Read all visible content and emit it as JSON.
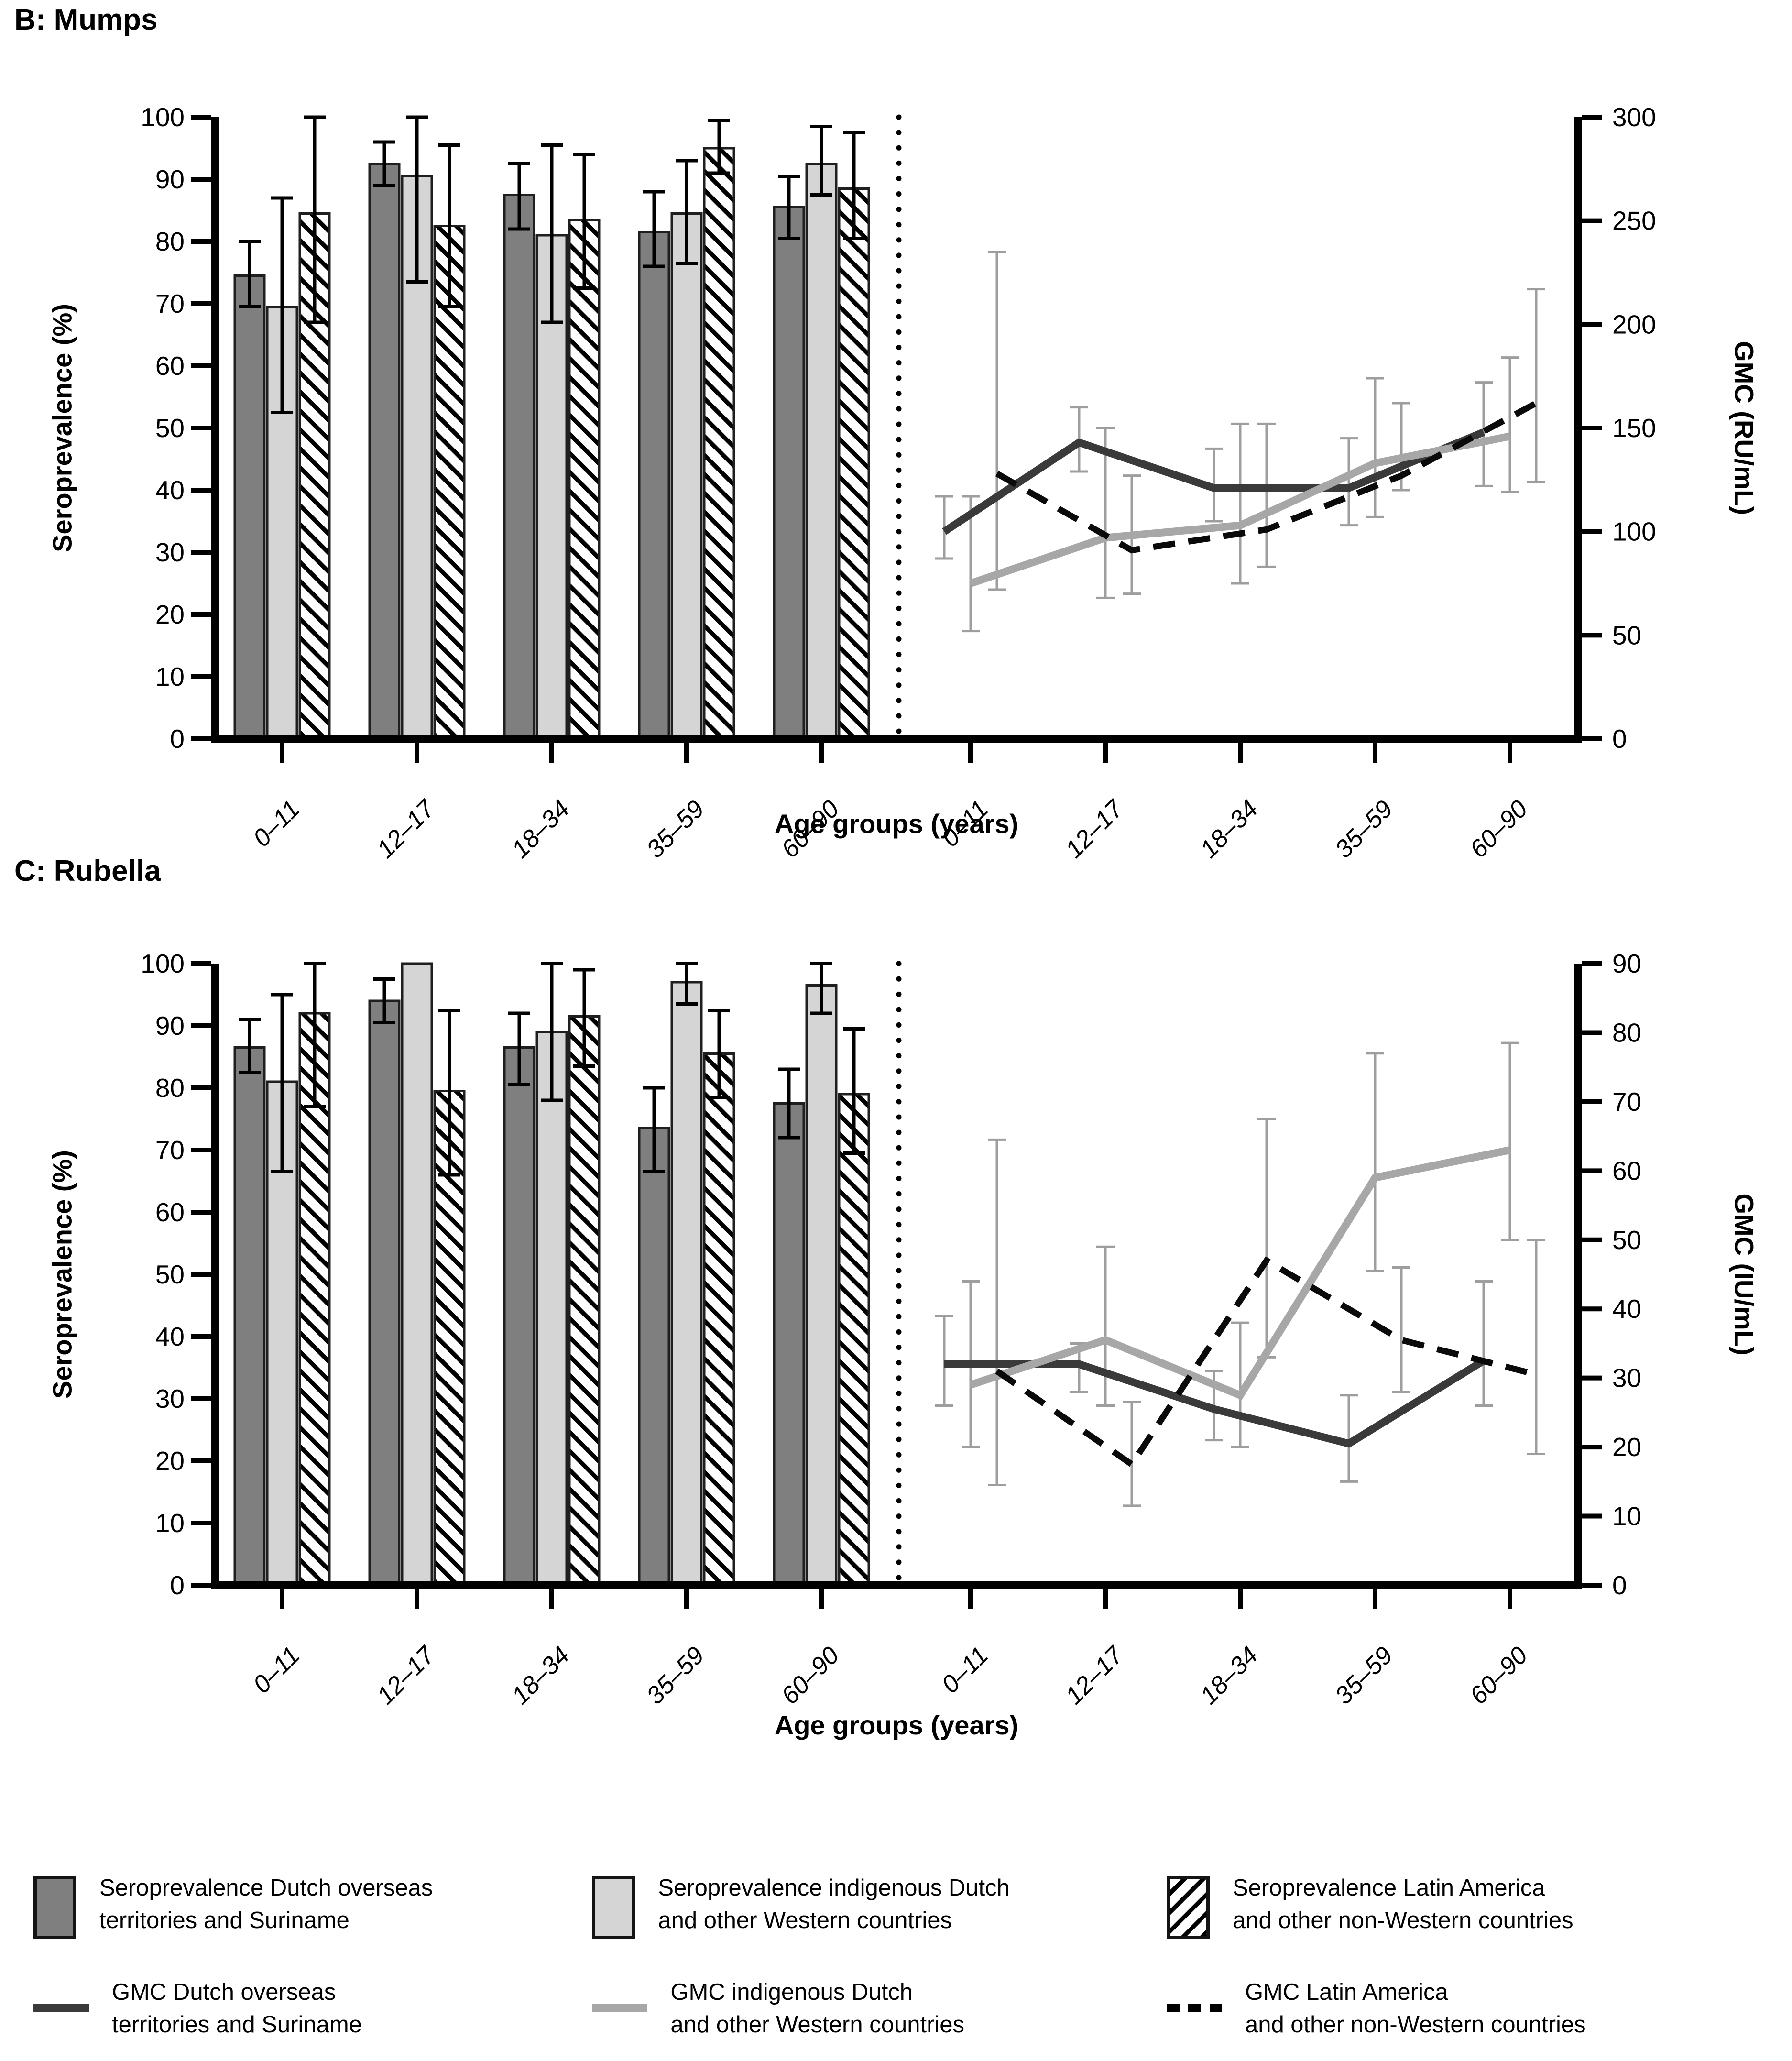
{
  "colors": {
    "bar_dark": "#7f7f7f",
    "bar_light": "#d5d5d5",
    "bar_border": "#1f1f1f",
    "line_dark": "#3a3a3a",
    "line_gray": "#a7a7a7",
    "line_dashed": "#0a0a0a",
    "error_bar_on_bars": "#000000",
    "error_bar_on_lines": "#9e9e9e",
    "axis": "#000000"
  },
  "chart_data": [
    {
      "panel": "B",
      "title": "B: Mumps",
      "type": "bar+line",
      "xlabel": "Age groups (years)",
      "categories": [
        "0–11",
        "12–17",
        "18–34",
        "35–59",
        "60–90"
      ],
      "bar_axis": {
        "label": "Seroprevalence (%)",
        "min": 0,
        "max": 100,
        "step": 10
      },
      "line_axis": {
        "label": "GMC (RU/mL)",
        "min": 0,
        "max": 300,
        "step": 50
      },
      "grid": "off",
      "bar_series": [
        {
          "name": "Seroprevalence Dutch overseas territories and Suriname",
          "style": "dark",
          "values": [
            74.5,
            92.5,
            87.5,
            81.5,
            85.5
          ],
          "ci_low": [
            69.5,
            89,
            82,
            76,
            80.5
          ],
          "ci_high": [
            80,
            96,
            92.5,
            88,
            90.5
          ]
        },
        {
          "name": "Seroprevalence indigenous Dutch and other Western countries",
          "style": "light",
          "values": [
            69.5,
            90.5,
            81,
            84.5,
            92.5
          ],
          "ci_low": [
            52.5,
            73.5,
            67,
            76.5,
            87.5
          ],
          "ci_high": [
            87,
            100,
            95.5,
            93,
            98.5
          ]
        },
        {
          "name": "Seroprevalence Latin America and other non-Western countries",
          "style": "hatched",
          "values": [
            84.5,
            82.5,
            83.5,
            95,
            88.5
          ],
          "ci_low": [
            67,
            69.5,
            72.5,
            91,
            80.5
          ],
          "ci_high": [
            100,
            95.5,
            94,
            99.5,
            97.5
          ]
        }
      ],
      "line_series": [
        {
          "name": "GMC Dutch overseas territories and Suriname",
          "style": "dark-solid",
          "values": [
            100,
            143,
            121,
            121,
            148
          ],
          "ci_low": [
            87,
            129,
            105,
            103,
            122
          ],
          "ci_high": [
            117,
            160,
            140,
            145,
            172
          ]
        },
        {
          "name": "GMC indigenous Dutch and other Western countries",
          "style": "gray-solid",
          "values": [
            75,
            97,
            103,
            133,
            146
          ],
          "ci_low": [
            52,
            68,
            75,
            107,
            119
          ],
          "ci_high": [
            117,
            150,
            152,
            174,
            184
          ]
        },
        {
          "name": "GMC Latin America and other non-Western countries",
          "style": "black-dashed",
          "values": [
            128,
            91,
            101,
            127,
            162
          ],
          "ci_low": [
            72,
            70,
            83,
            120,
            124
          ],
          "ci_high": [
            235,
            127,
            152,
            162,
            217
          ]
        }
      ]
    },
    {
      "panel": "C",
      "title": "C: Rubella",
      "type": "bar+line",
      "xlabel": "Age groups (years)",
      "categories": [
        "0–11",
        "12–17",
        "18–34",
        "35–59",
        "60–90"
      ],
      "bar_axis": {
        "label": "Seroprevalence (%)",
        "min": 0,
        "max": 100,
        "step": 10
      },
      "line_axis": {
        "label": "GMC (IU/mL)",
        "min": 0,
        "max": 90,
        "step": 10
      },
      "grid": "off",
      "bar_series": [
        {
          "name": "Seroprevalence Dutch overseas territories and Suriname",
          "style": "dark",
          "values": [
            86.5,
            94,
            86.5,
            73.5,
            77.5
          ],
          "ci_low": [
            82.5,
            90.5,
            80.5,
            66.5,
            72
          ],
          "ci_high": [
            91,
            97.5,
            92,
            80,
            83
          ]
        },
        {
          "name": "Seroprevalence indigenous Dutch and other Western countries",
          "style": "light",
          "values": [
            81,
            100,
            89,
            97,
            96.5
          ],
          "ci_low": [
            66.5,
            100,
            78,
            93.5,
            92
          ],
          "ci_high": [
            95,
            100,
            100,
            100,
            100
          ]
        },
        {
          "name": "Seroprevalence Latin America and other non-Western countries",
          "style": "hatched",
          "values": [
            92,
            79.5,
            91.5,
            85.5,
            79
          ],
          "ci_low": [
            77,
            66,
            83.5,
            78.5,
            69.5
          ],
          "ci_high": [
            100,
            92.5,
            99,
            92.5,
            89.5
          ]
        }
      ],
      "line_series": [
        {
          "name": "GMC Dutch overseas territories and Suriname",
          "style": "dark-solid",
          "values": [
            32,
            32,
            25.5,
            20.5,
            32.5
          ],
          "ci_low": [
            26,
            28,
            21,
            15,
            26
          ],
          "ci_high": [
            39,
            35,
            31,
            27.5,
            44
          ]
        },
        {
          "name": "GMC indigenous Dutch and other Western countries",
          "style": "gray-solid",
          "values": [
            29,
            35.5,
            27.5,
            59,
            63
          ],
          "ci_low": [
            20,
            26,
            20,
            45.5,
            50
          ],
          "ci_high": [
            44,
            49,
            38,
            77,
            78.5
          ]
        },
        {
          "name": "GMC Latin America and other non-Western countries",
          "style": "black-dashed",
          "values": [
            31,
            17.5,
            47,
            35.5,
            30.5
          ],
          "ci_low": [
            14.5,
            11.5,
            33,
            28,
            19
          ],
          "ci_high": [
            64.5,
            26.5,
            67.5,
            46,
            50
          ]
        }
      ]
    }
  ],
  "legend": {
    "items": [
      {
        "swatch": "bar-dark",
        "label": "Seroprevalence Dutch overseas\nterritories and Suriname"
      },
      {
        "swatch": "bar-light",
        "label": "Seroprevalence indigenous Dutch\nand other Western countries"
      },
      {
        "swatch": "bar-hatched",
        "label": "Seroprevalence Latin America\nand other non-Western countries"
      },
      {
        "swatch": "line-dark",
        "label": "GMC Dutch overseas\nterritories and Suriname"
      },
      {
        "swatch": "line-gray",
        "label": "GMC indigenous Dutch\nand other Western countries"
      },
      {
        "swatch": "line-dashed",
        "label": "GMC Latin America\nand other non-Western countries"
      }
    ]
  }
}
